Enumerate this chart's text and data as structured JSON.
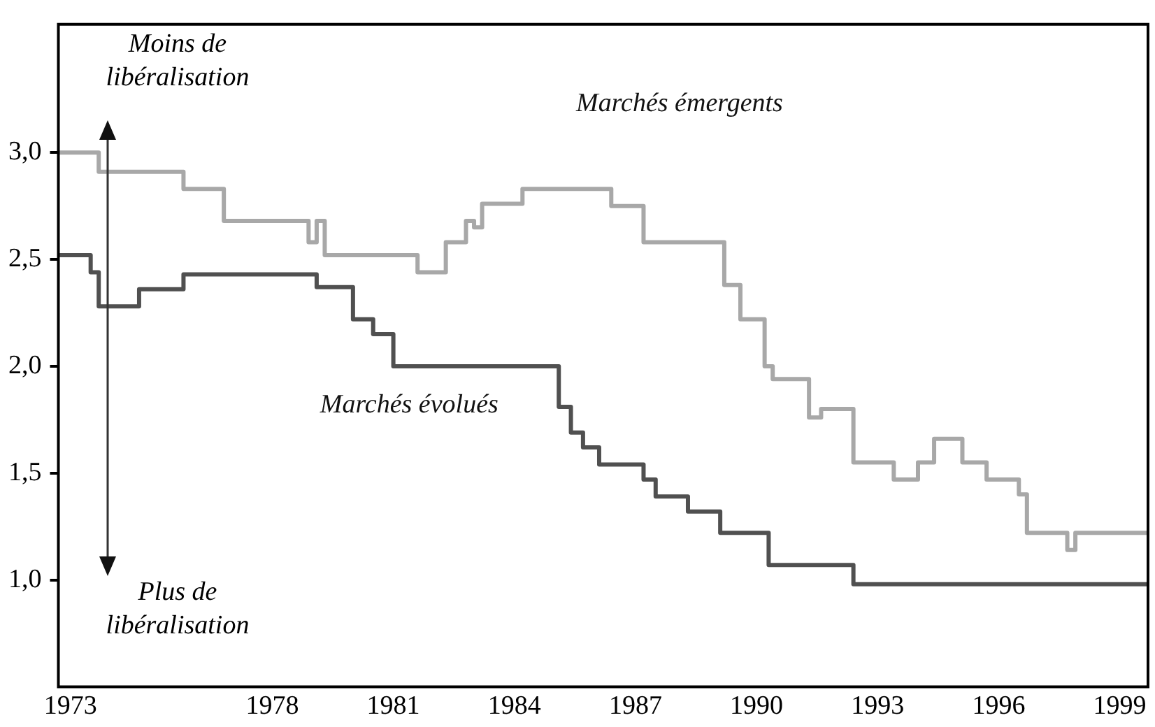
{
  "chart_data": {
    "type": "step",
    "xlim": [
      1972.7,
      1999.7
    ],
    "xticks": [
      1973,
      1978,
      1981,
      1984,
      1987,
      1990,
      1993,
      1996,
      1999
    ],
    "ylim": [
      0.5,
      3.6
    ],
    "yticks": [
      {
        "value": 1,
        "label": "1,0"
      },
      {
        "value": 1.5,
        "label": "1,5"
      },
      {
        "value": 2,
        "label": "2,0"
      },
      {
        "value": 2.5,
        "label": "2,5"
      },
      {
        "value": 3,
        "label": "3,0"
      }
    ],
    "grid": false,
    "legend": false,
    "series": [
      {
        "name": "Marchés émergents",
        "color": "#a8a8a8",
        "x": [
          1972.7,
          1973.7,
          1975.8,
          1976.8,
          1978.9,
          1979.1,
          1979.3,
          1981.6,
          1982.3,
          1982.8,
          1983.0,
          1983.2,
          1984.2,
          1986.4,
          1987.2,
          1989.2,
          1989.6,
          1990.2,
          1990.4,
          1991.3,
          1991.6,
          1992.4,
          1993.4,
          1994.0,
          1994.4,
          1995.1,
          1995.7,
          1996.5,
          1996.7,
          1997.7,
          1997.9,
          1999.7
        ],
        "values": [
          3.0,
          2.91,
          2.83,
          2.68,
          2.58,
          2.68,
          2.52,
          2.44,
          2.58,
          2.68,
          2.65,
          2.76,
          2.83,
          2.75,
          2.58,
          2.38,
          2.22,
          2.0,
          1.94,
          1.76,
          1.8,
          1.55,
          1.47,
          1.55,
          1.66,
          1.55,
          1.47,
          1.4,
          1.22,
          1.14,
          1.22,
          1.22
        ]
      },
      {
        "name": "Marchés évolués",
        "color": "#505050",
        "x": [
          1972.7,
          1973.5,
          1973.7,
          1974.7,
          1975.8,
          1979.1,
          1980.0,
          1980.5,
          1981.0,
          1985.1,
          1985.4,
          1985.7,
          1986.1,
          1987.2,
          1987.5,
          1988.3,
          1989.1,
          1990.3,
          1992.4,
          1999.7
        ],
        "values": [
          2.52,
          2.44,
          2.28,
          2.36,
          2.43,
          2.37,
          2.22,
          2.15,
          2.0,
          1.81,
          1.69,
          1.62,
          1.54,
          1.47,
          1.39,
          1.32,
          1.22,
          1.07,
          0.98,
          0.98
        ]
      }
    ],
    "annotations": [
      "Moins de libéralisation",
      "Plus de libéralisation"
    ]
  }
}
